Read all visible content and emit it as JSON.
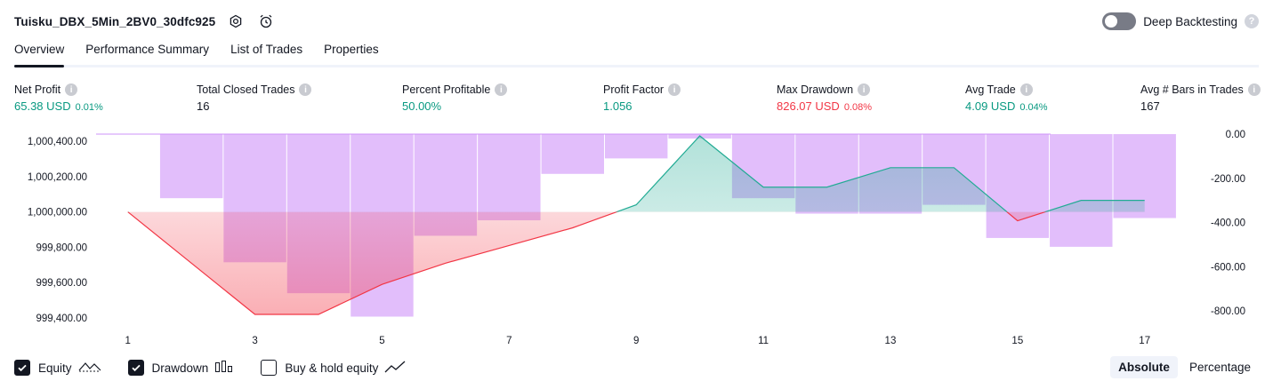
{
  "header": {
    "strategy_name": "Tuisku_DBX_5Min_2BV0_30dfc925",
    "deep_backtesting_label": "Deep Backtesting",
    "deep_backtesting_enabled": false,
    "help_glyph": "?"
  },
  "tabs": [
    {
      "label": "Overview",
      "active": true
    },
    {
      "label": "Performance Summary",
      "active": false
    },
    {
      "label": "List of Trades",
      "active": false
    },
    {
      "label": "Properties",
      "active": false
    }
  ],
  "metrics": [
    {
      "label": "Net Profit",
      "value": "65.38 USD",
      "sub": "0.01%",
      "tone": "pos"
    },
    {
      "label": "Total Closed Trades",
      "value": "16",
      "sub": "",
      "tone": "neutral"
    },
    {
      "label": "Percent Profitable",
      "value": "50.00%",
      "sub": "",
      "tone": "pos"
    },
    {
      "label": "Profit Factor",
      "value": "1.056",
      "sub": "",
      "tone": "pos"
    },
    {
      "label": "Max Drawdown",
      "value": "826.07 USD",
      "sub": "0.08%",
      "tone": "neg"
    },
    {
      "label": "Avg Trade",
      "value": "4.09 USD",
      "sub": "0.04%",
      "tone": "pos"
    },
    {
      "label": "Avg # Bars in Trades",
      "value": "167",
      "sub": "",
      "tone": "neutral"
    }
  ],
  "info_glyph": "i",
  "chart_data": {
    "type": "line",
    "x_ticks": [
      1,
      3,
      5,
      7,
      9,
      11,
      13,
      15,
      17
    ],
    "x_range": [
      0.5,
      17.9
    ],
    "left_axis": {
      "ticks": [
        1000400,
        1000200,
        1000000,
        999800,
        999600,
        999400
      ],
      "tick_labels": [
        "1,000,400.00",
        "1,000,200.00",
        "1,000,000.00",
        "999,800.00",
        "999,600.00",
        "999,400.00"
      ],
      "range": [
        999390,
        1000440
      ]
    },
    "right_axis": {
      "ticks": [
        0,
        -200,
        -400,
        -600,
        -800
      ],
      "tick_labels": [
        "0.00",
        "-200.00",
        "-400.00",
        "-600.00",
        "-800.00"
      ],
      "range": [
        -840,
        0
      ]
    },
    "equity_baseline": 1000000,
    "series": [
      {
        "name": "Equity",
        "x": [
          1,
          2,
          3,
          4,
          5,
          6,
          7,
          8,
          9,
          10,
          11,
          12,
          13,
          14,
          15,
          16,
          17
        ],
        "values": [
          1000000,
          999710,
          999420,
          999420,
          999590,
          999710,
          999810,
          999910,
          1000040,
          1000430,
          1000140,
          1000140,
          1000250,
          1000250,
          999950,
          1000065,
          1000065
        ]
      },
      {
        "name": "Drawdown",
        "x": [
          2,
          3,
          4,
          5,
          6,
          7,
          8,
          9,
          10,
          11,
          12,
          13,
          14,
          15,
          16,
          17
        ],
        "values": [
          -290,
          -580,
          -720,
          -826,
          -460,
          -390,
          -180,
          -110,
          -20,
          -290,
          -360,
          -360,
          -320,
          -470,
          -510,
          -380
        ]
      }
    ],
    "colors": {
      "equity_up": "#22ab94",
      "equity_down": "#f23645",
      "drawdown": "#ce93f8",
      "grid": "#e0e3eb"
    },
    "grid": "vertical"
  },
  "legend": {
    "items": [
      {
        "label": "Equity",
        "checked": true,
        "icon": "equity-line-icon"
      },
      {
        "label": "Drawdown",
        "checked": true,
        "icon": "drawdown-bars-icon"
      },
      {
        "label": "Buy & hold equity",
        "checked": false,
        "icon": "buy-hold-line-icon"
      }
    ],
    "modes": [
      {
        "label": "Absolute",
        "active": true
      },
      {
        "label": "Percentage",
        "active": false
      }
    ]
  }
}
